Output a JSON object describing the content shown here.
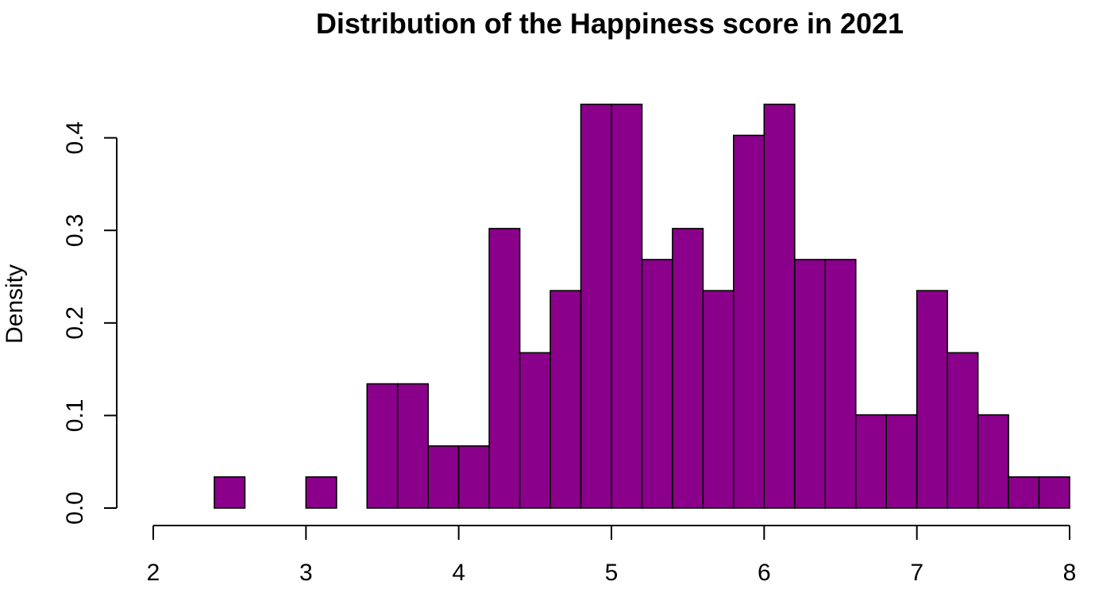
{
  "chart_data": {
    "type": "bar",
    "title": "Distribution of the Happiness score in 2021",
    "xlabel": "",
    "ylabel": "Density",
    "xlim": [
      2,
      8
    ],
    "ylim": [
      0,
      0.44
    ],
    "x_ticks": [
      2,
      3,
      4,
      5,
      6,
      7,
      8
    ],
    "y_ticks": [
      0.0,
      0.1,
      0.2,
      0.3,
      0.4
    ],
    "y_tick_labels": [
      "0.0",
      "0.1",
      "0.2",
      "0.3",
      "0.4"
    ],
    "bin_width": 0.2,
    "bin_starts": [
      2.4,
      2.6,
      2.8,
      3.0,
      3.2,
      3.4,
      3.6,
      3.8,
      4.0,
      4.2,
      4.4,
      4.6,
      4.8,
      5.0,
      5.2,
      5.4,
      5.6,
      5.8,
      6.0,
      6.2,
      6.4,
      6.6,
      6.8,
      7.0,
      7.2,
      7.4,
      7.6,
      7.8
    ],
    "values": [
      0.0336,
      0.0,
      0.0,
      0.0336,
      0.0,
      0.1342,
      0.1342,
      0.0671,
      0.0671,
      0.302,
      0.1678,
      0.2349,
      0.4362,
      0.4362,
      0.2685,
      0.302,
      0.2349,
      0.4027,
      0.4362,
      0.2685,
      0.2685,
      0.1007,
      0.1007,
      0.2349,
      0.1678,
      0.1007,
      0.0336,
      0.0336
    ],
    "bar_color": "#8B008B",
    "bar_outline_color": "#000000",
    "grid": false,
    "legend": "none"
  }
}
